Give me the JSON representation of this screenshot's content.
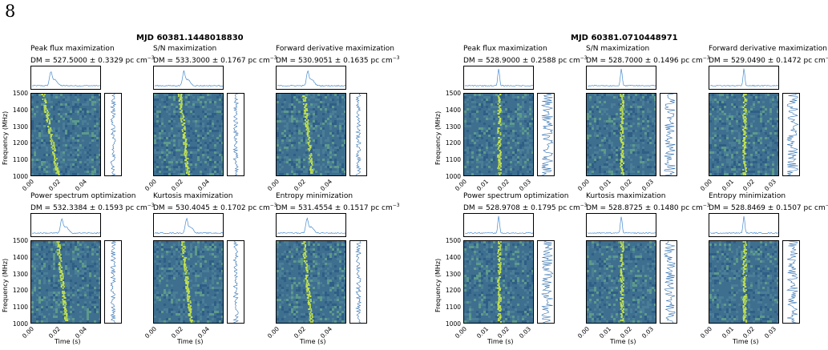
{
  "page_number": "8",
  "groups": [
    {
      "title": "MJD 60381.1448018830",
      "x_ticks": [
        "0.00",
        "0.02",
        "0.04"
      ],
      "y_ticks": [
        "1500",
        "1400",
        "1300",
        "1200",
        "1100",
        "1000"
      ],
      "ylabel": "Frequency (MHz)",
      "xlabel": "Time (s)",
      "panels": [
        {
          "method": "Peak flux maximization",
          "dm": "DM = 527.5000 ± 0.3329 pc cm",
          "pulse_frac": 0.27
        },
        {
          "method": "S/N maximization",
          "dm": "DM = 533.3000 ± 0.1767 pc cm",
          "pulse_frac": 0.42
        },
        {
          "method": "Forward derivative maximization",
          "dm": "DM = 530.9051 ± 0.1635 pc cm",
          "pulse_frac": 0.44
        },
        {
          "method": "Power spectrum optimization",
          "dm": "DM = 532.3384 ± 0.1593 pc cm",
          "pulse_frac": 0.43
        },
        {
          "method": "Kurtosis maximization",
          "dm": "DM = 530.4045 ± 0.1702 pc cm",
          "pulse_frac": 0.46
        },
        {
          "method": "Entropy minimization",
          "dm": "DM = 531.4554 ± 0.1517 pc cm",
          "pulse_frac": 0.43
        }
      ]
    },
    {
      "title": "MJD 60381.0710448971",
      "x_ticks": [
        "0.00",
        "0.01",
        "0.02",
        "0.03"
      ],
      "y_ticks": [
        "1500",
        "1400",
        "1300",
        "1200",
        "1100",
        "1000"
      ],
      "ylabel": "Frequency (MHz)",
      "xlabel": "Time (s)",
      "panels": [
        {
          "method": "Peak flux maximization",
          "dm": "DM = 528.9000 ± 0.2588 pc cm",
          "pulse_frac": 0.49
        },
        {
          "method": "S/N maximization",
          "dm": "DM = 528.7000 ± 0.1496 pc cm",
          "pulse_frac": 0.49
        },
        {
          "method": "Forward derivative maximization",
          "dm": "DM = 529.0490 ± 0.1472 pc cm",
          "pulse_frac": 0.49
        },
        {
          "method": "Power spectrum optimization",
          "dm": "DM = 528.9708 ± 0.1795 pc cm",
          "pulse_frac": 0.49
        },
        {
          "method": "Kurtosis maximization",
          "dm": "DM = 528.8725 ± 0.1480 pc cm",
          "pulse_frac": 0.49
        },
        {
          "method": "Entropy minimization",
          "dm": "DM = 528.8469 ± 0.1507 pc cm",
          "pulse_frac": 0.49
        }
      ]
    }
  ],
  "dm_unit_exponent": "−3",
  "colors": {
    "waterfall_bg": "#3f6f8f",
    "waterfall_signal": "#c8e64a",
    "profile_line": "#4a8ccf",
    "spectrum_line": "#2f6fb0"
  }
}
